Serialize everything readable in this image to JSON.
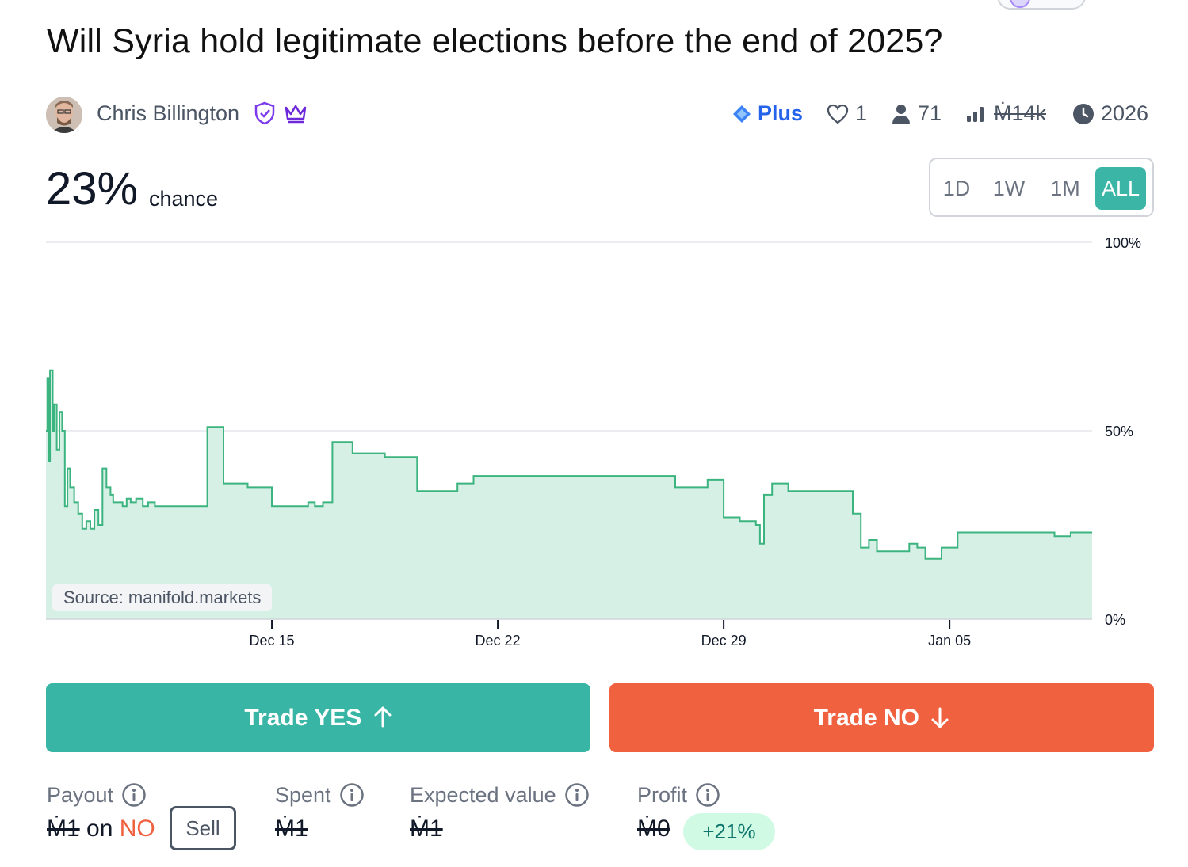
{
  "market": {
    "title": "Will Syria hold legitimate elections before the end of 2025?",
    "creator_name": "Chris Billington",
    "tier": "Plus",
    "likes": "1",
    "traders": "71",
    "volume": "Ṁ14k",
    "close_year": "2026"
  },
  "probability": {
    "value": "23%",
    "label": "chance"
  },
  "time_range": {
    "options": [
      "1D",
      "1W",
      "1M",
      "ALL"
    ],
    "selected": "ALL"
  },
  "chart_data": {
    "type": "area",
    "x_tick_labels": [
      "Dec 15",
      "Dec 22",
      "Dec 29",
      "Jan 05"
    ],
    "y_tick_labels": [
      "100%",
      "50%",
      "0%"
    ],
    "ylim": [
      0,
      100
    ],
    "source": "Source: manifold.markets",
    "colors": {
      "line": "#3bb47f",
      "fill": "#d7f0e6",
      "grid": "#e5e7eb"
    },
    "series": [
      {
        "x": [
          "2024-12-08T00:00",
          "2024-12-08T01:00",
          "2024-12-08T02:00",
          "2024-12-08T03:00",
          "2024-12-08T05:00",
          "2024-12-08T06:00",
          "2024-12-08T08:00",
          "2024-12-08T10:00",
          "2024-12-08T12:00",
          "2024-12-08T14:00",
          "2024-12-08T16:00",
          "2024-12-08T18:00",
          "2024-12-08T21:00",
          "2024-12-09T00:00",
          "2024-12-09T03:00",
          "2024-12-09T06:00",
          "2024-12-09T09:00",
          "2024-12-09T12:00",
          "2024-12-09T15:00",
          "2024-12-09T18:00",
          "2024-12-09T21:00",
          "2024-12-10T00:00",
          "2024-12-10T02:00",
          "2024-12-10T05:00",
          "2024-12-10T09:00",
          "2024-12-10T12:00",
          "2024-12-10T15:00",
          "2024-12-10T19:00",
          "2024-12-11T00:00",
          "2024-12-11T04:00",
          "2024-12-11T09:00",
          "2024-12-11T14:00",
          "2024-12-12T00:00",
          "2024-12-12T06:00",
          "2024-12-12T18:00",
          "2024-12-13T00:00",
          "2024-12-13T12:00",
          "2024-12-14T06:00",
          "2024-12-15T00:00",
          "2024-12-15T12:00",
          "2024-12-16T00:00",
          "2024-12-16T03:00",
          "2024-12-16T08:00",
          "2024-12-16T14:00",
          "2024-12-16T21:00",
          "2024-12-17T12:00",
          "2024-12-18T12:00",
          "2024-12-19T12:00",
          "2024-12-20T06:00",
          "2024-12-20T18:00",
          "2024-12-21T00:00",
          "2024-12-21T03:00",
          "2024-12-21T06:00",
          "2024-12-21T18:00",
          "2024-12-22T06:00",
          "2024-12-23T06:00",
          "2024-12-23T12:00",
          "2024-12-24T12:00",
          "2024-12-25T06:00",
          "2024-12-26T12:00",
          "2024-12-27T12:00",
          "2024-12-28T12:00",
          "2024-12-29T00:00",
          "2024-12-29T12:00",
          "2024-12-30T00:00",
          "2024-12-30T03:00",
          "2024-12-30T06:00",
          "2024-12-30T12:00",
          "2024-12-30T18:00",
          "2024-12-31T00:00",
          "2024-12-31T09:00",
          "2024-12-31T18:00",
          "2025-01-01T06:00",
          "2025-01-01T12:00",
          "2025-01-02T00:00",
          "2025-01-02T06:00",
          "2025-01-02T12:00",
          "2025-01-02T18:00",
          "2025-01-03T06:00",
          "2025-01-03T12:00",
          "2025-01-03T18:00",
          "2025-01-04T00:00",
          "2025-01-04T06:00",
          "2025-01-04T18:00",
          "2025-01-05T06:00",
          "2025-01-06T00:00",
          "2025-01-07T00:00",
          "2025-01-08T00:00",
          "2025-01-08T06:00",
          "2025-01-08T18:00"
        ],
        "y": [
          50,
          64,
          42,
          66,
          50,
          57,
          45,
          55,
          50,
          30,
          40,
          35,
          31,
          28,
          24,
          26,
          24,
          29,
          25,
          40,
          35,
          33,
          31,
          31,
          30,
          32,
          31,
          32,
          30,
          31,
          30,
          30,
          30,
          30,
          30,
          51,
          36,
          35,
          30,
          30,
          30,
          31,
          30,
          31,
          47,
          44,
          43,
          34,
          34,
          36,
          36,
          36,
          38,
          38,
          38,
          38,
          38,
          38,
          38,
          38,
          35,
          37,
          27,
          26,
          25,
          20,
          33,
          36,
          36,
          34,
          34,
          34,
          34,
          34,
          28,
          19,
          21,
          18,
          18,
          18,
          20,
          19,
          16,
          19,
          23,
          23,
          23,
          23,
          22,
          23
        ],
        "values_as_percent": true
      }
    ]
  },
  "actions": {
    "yes_label": "Trade YES",
    "no_label": "Trade NO"
  },
  "summary": {
    "payout_label": "Payout",
    "payout_amount": "Ṁ1",
    "payout_on": " on ",
    "payout_outcome": "NO",
    "sell_label": "Sell",
    "spent_label": "Spent",
    "spent_value": "Ṁ1",
    "ev_label": "Expected value",
    "ev_value": "Ṁ1",
    "profit_label": "Profit",
    "profit_value": "Ṁ0",
    "profit_pct": "+21%"
  }
}
